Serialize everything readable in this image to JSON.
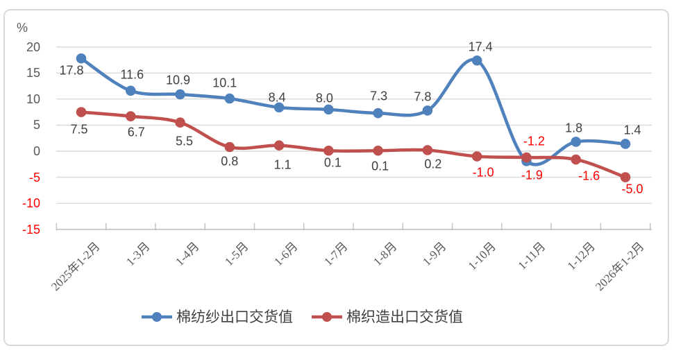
{
  "chart_data": {
    "type": "line",
    "smooth": true,
    "title": "",
    "xlabel": "",
    "ylabel": "%",
    "ylim": [
      -15,
      20
    ],
    "ytick_interval": 5,
    "ytick_labels": [
      "20",
      "15",
      "10",
      "5",
      "0",
      "-5",
      "-10",
      "-15"
    ],
    "grid": true,
    "legend_position": "bottom",
    "categories": [
      "2025年1-2月",
      "1-3月",
      "1-4月",
      "1-5月",
      "1-6月",
      "1-7月",
      "1-8月",
      "1-9月",
      "1-10月",
      "1-11月",
      "1-12月",
      "2026年1-2月"
    ],
    "series": [
      {
        "name": "棉纺纱出口交货值",
        "color": "#4F81BD",
        "values": [
          17.8,
          11.6,
          10.9,
          10.1,
          8.4,
          8.0,
          7.3,
          7.8,
          17.4,
          -1.9,
          1.8,
          1.4
        ],
        "label_offsets": [
          [
            -14,
            18
          ],
          [
            2,
            -23
          ],
          [
            -3,
            -20
          ],
          [
            -7,
            -22
          ],
          [
            -3,
            -14
          ],
          [
            -6,
            -16
          ],
          [
            1,
            -24
          ],
          [
            -7,
            -19
          ],
          [
            5,
            -19
          ],
          [
            8,
            21
          ],
          [
            -3,
            -19
          ],
          [
            10,
            -19
          ]
        ]
      },
      {
        "name": "棉织造出口交货值",
        "color": "#C0504D",
        "values": [
          7.5,
          6.7,
          5.5,
          0.8,
          1.1,
          0.1,
          0.1,
          0.2,
          -1.0,
          -1.2,
          -1.6,
          -5.0
        ],
        "label_offsets": [
          [
            -3,
            25
          ],
          [
            8,
            23
          ],
          [
            6,
            27
          ],
          [
            0,
            21
          ],
          [
            5,
            28
          ],
          [
            6,
            18
          ],
          [
            3,
            23
          ],
          [
            8,
            21
          ],
          [
            9,
            23
          ],
          [
            11,
            -23
          ],
          [
            19,
            24
          ],
          [
            10,
            17
          ]
        ]
      }
    ],
    "style": {
      "grid_color": "#D9D9D9",
      "axis_color": "#BFBFBF",
      "tick_label_color": "#595959",
      "negative_tick_label_color": "#FF0000",
      "data_label_color": "#404040",
      "negative_data_label_color": "#FF0000",
      "border_color": "#D9D9D9"
    }
  }
}
